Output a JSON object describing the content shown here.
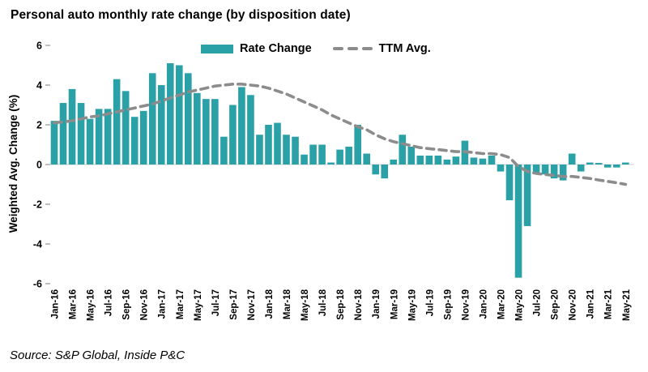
{
  "title": "Personal auto monthly rate change (by disposition date)",
  "source": "Source: S&P Global, Inside P&C",
  "legend": {
    "rate_change_label": "Rate Change",
    "ttm_avg_label": "TTM Avg."
  },
  "colors": {
    "bar": "#2AA1A7",
    "ttm_line": "#8C8C8C",
    "zero_line": "#D0D0D0",
    "tick": "#7F7F7F",
    "text": "#000000"
  },
  "chart_data": {
    "type": "bar",
    "title": "Personal auto monthly rate change (by disposition date)",
    "xlabel": "",
    "ylabel": "Weighted Avg. Change (%)",
    "ylim": [
      -6,
      6
    ],
    "yticks": [
      6,
      4,
      2,
      0,
      -2,
      -4,
      -6
    ],
    "grid": false,
    "legend_position": "top",
    "x_tick_labels": [
      "Jan-16",
      "Mar-16",
      "May-16",
      "Jul-16",
      "Sep-16",
      "Nov-16",
      "Jan-17",
      "Mar-17",
      "May-17",
      "Jul-17",
      "Sep-17",
      "Nov-17",
      "Jan-18",
      "Mar-18",
      "May-18",
      "Jul-18",
      "Sep-18",
      "Nov-18",
      "Jan-19",
      "Mar-19",
      "May-19",
      "Jul-19",
      "Sep-19",
      "Nov-19",
      "Jan-20",
      "Mar-20",
      "May-20",
      "Jul-20",
      "Sep-20",
      "Nov-20",
      "Jan-21",
      "Mar-21",
      "May-21"
    ],
    "categories": [
      "Jan-16",
      "Feb-16",
      "Mar-16",
      "Apr-16",
      "May-16",
      "Jun-16",
      "Jul-16",
      "Aug-16",
      "Sep-16",
      "Oct-16",
      "Nov-16",
      "Dec-16",
      "Jan-17",
      "Feb-17",
      "Mar-17",
      "Apr-17",
      "May-17",
      "Jun-17",
      "Jul-17",
      "Aug-17",
      "Sep-17",
      "Oct-17",
      "Nov-17",
      "Dec-17",
      "Jan-18",
      "Feb-18",
      "Mar-18",
      "Apr-18",
      "May-18",
      "Jun-18",
      "Jul-18",
      "Aug-18",
      "Sep-18",
      "Oct-18",
      "Nov-18",
      "Dec-18",
      "Jan-19",
      "Feb-19",
      "Mar-19",
      "Apr-19",
      "May-19",
      "Jun-19",
      "Jul-19",
      "Aug-19",
      "Sep-19",
      "Oct-19",
      "Nov-19",
      "Dec-19",
      "Jan-20",
      "Feb-20",
      "Mar-20",
      "Apr-20",
      "May-20",
      "Jun-20",
      "Jul-20",
      "Aug-20",
      "Sep-20",
      "Oct-20",
      "Nov-20",
      "Dec-20",
      "Jan-21",
      "Feb-21",
      "Mar-21",
      "Apr-21",
      "May-21"
    ],
    "series": [
      {
        "name": "Rate Change",
        "type": "bar",
        "values": [
          2.2,
          3.1,
          3.8,
          3.1,
          2.3,
          2.8,
          2.8,
          4.3,
          3.7,
          2.4,
          2.7,
          4.6,
          4.0,
          5.1,
          5.0,
          4.6,
          3.6,
          3.3,
          3.3,
          1.4,
          3.0,
          3.9,
          3.5,
          1.5,
          2.0,
          2.1,
          1.5,
          1.4,
          0.5,
          1.0,
          1.0,
          0.1,
          0.75,
          0.9,
          2.0,
          0.55,
          -0.5,
          -0.7,
          0.25,
          1.5,
          0.9,
          0.45,
          0.45,
          0.45,
          0.25,
          0.4,
          1.2,
          0.35,
          0.3,
          0.45,
          -0.35,
          -1.8,
          -5.7,
          -3.1,
          -0.4,
          -0.5,
          -0.7,
          -0.8,
          0.55,
          -0.35,
          0.1,
          0.08,
          -0.15,
          -0.15,
          0.1
        ]
      },
      {
        "name": "TTM Avg.",
        "type": "dashed-line",
        "values": [
          2.1,
          2.15,
          2.2,
          2.3,
          2.4,
          2.45,
          2.55,
          2.65,
          2.75,
          2.85,
          2.95,
          3.05,
          3.2,
          3.35,
          3.5,
          3.65,
          3.75,
          3.85,
          3.95,
          4.0,
          4.05,
          4.05,
          4.0,
          3.95,
          3.85,
          3.7,
          3.55,
          3.35,
          3.15,
          2.95,
          2.75,
          2.5,
          2.3,
          2.1,
          1.9,
          1.75,
          1.5,
          1.3,
          1.15,
          1.05,
          0.95,
          0.85,
          0.8,
          0.75,
          0.7,
          0.65,
          0.65,
          0.6,
          0.55,
          0.55,
          0.5,
          0.35,
          -0.1,
          -0.35,
          -0.45,
          -0.5,
          -0.55,
          -0.6,
          -0.6,
          -0.65,
          -0.7,
          -0.78,
          -0.85,
          -0.92,
          -1.0
        ]
      }
    ]
  }
}
